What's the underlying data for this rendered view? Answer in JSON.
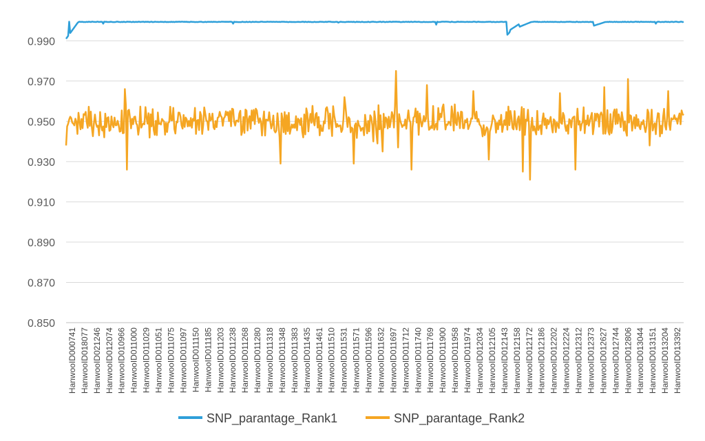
{
  "chart_data": {
    "type": "line",
    "title": "",
    "xlabel": "",
    "ylabel": "",
    "ylim": [
      0.85,
      1.0
    ],
    "yticks": [
      "0.850",
      "0.870",
      "0.890",
      "0.910",
      "0.930",
      "0.950",
      "0.970",
      "0.990"
    ],
    "grid": true,
    "legend_position": "bottom",
    "point_count": 600,
    "tick_labels": [
      "HanwooID000741",
      "HanwooID018077",
      "HanwooID021246",
      "HanwooID012074",
      "HanwooID010966",
      "HanwooID011000",
      "HanwooID011029",
      "HanwooID011051",
      "HanwooID011075",
      "HanwooID011097",
      "HanwooID011150",
      "HanwooID011185",
      "HanwooID011203",
      "HanwooID011238",
      "HanwooID011268",
      "HanwooID011280",
      "HanwooID011318",
      "HanwooID011348",
      "HanwooID011383",
      "HanwooID011435",
      "HanwooID011461",
      "HanwooID011510",
      "HanwooID011531",
      "HanwooID011571",
      "HanwooID011596",
      "HanwooID011632",
      "HanwooID011697",
      "HanwooID011712",
      "HanwooID011740",
      "HanwooID011769",
      "HanwooID011900",
      "HanwooID011958",
      "HanwooID011974",
      "HanwooID012034",
      "HanwooID012105",
      "HanwooID012143",
      "HanwooID012158",
      "HanwooID012172",
      "HanwooID012186",
      "HanwooID012202",
      "HanwooID012224",
      "HanwooID012312",
      "HanwooID012373",
      "HanwooID012627",
      "HanwooID012744",
      "HanwooID012806",
      "HanwooID013044",
      "HanwooID013151",
      "HanwooID013204",
      "HanwooID013392"
    ],
    "series": [
      {
        "name": "SNP_parantage_Rank1",
        "color": "#2E9FD9",
        "base": 0.9995,
        "noise": 0.0004,
        "features": [
          {
            "at": 0.0,
            "value": 0.991
          },
          {
            "at": 0.005,
            "value": 0.9995
          },
          {
            "at": 0.06,
            "value": 0.9985
          },
          {
            "at": 0.27,
            "value": 0.9985
          },
          {
            "at": 0.44,
            "value": 0.999
          },
          {
            "at": 0.6,
            "value": 0.998
          },
          {
            "at": 0.715,
            "value": 0.993
          },
          {
            "at": 0.72,
            "value": 0.9955
          },
          {
            "at": 0.735,
            "value": 0.997
          },
          {
            "at": 0.855,
            "value": 0.9975
          },
          {
            "at": 0.955,
            "value": 0.9985
          }
        ]
      },
      {
        "name": "SNP_parantage_Rank2",
        "color": "#F5A623",
        "base": 0.95,
        "noise": 0.0075,
        "features": [
          {
            "at": 0.0,
            "value": 0.938
          },
          {
            "at": 0.095,
            "value": 0.966
          },
          {
            "at": 0.098,
            "value": 0.926
          },
          {
            "at": 0.348,
            "value": 0.929
          },
          {
            "at": 0.45,
            "value": 0.962
          },
          {
            "at": 0.465,
            "value": 0.929
          },
          {
            "at": 0.49,
            "value": 0.929
          },
          {
            "at": 0.497,
            "value": 0.931
          },
          {
            "at": 0.492,
            "value": 0.962
          },
          {
            "at": 0.51,
            "value": 0.96
          },
          {
            "at": 0.49,
            "value": 0.956
          },
          {
            "at": 0.498,
            "value": 0.958
          },
          {
            "at": 0.5,
            "value": 0.962
          },
          {
            "at": 0.495,
            "value": 0.951
          },
          {
            "at": 0.508,
            "value": 0.93
          },
          {
            "at": 0.512,
            "value": 0.935
          },
          {
            "at": 0.496,
            "value": 0.928
          },
          {
            "at": 0.499,
            "value": 0.946
          },
          {
            "at": 0.502,
            "value": 0.941
          },
          {
            "at": 0.505,
            "value": 0.944
          },
          {
            "at": 0.494,
            "value": 0.952
          },
          {
            "at": 0.488,
            "value": 0.947
          },
          {
            "at": 0.493,
            "value": 0.955
          },
          {
            "at": 0.497,
            "value": 0.94
          },
          {
            "at": 0.5,
            "value": 0.944
          },
          {
            "at": 0.503,
            "value": 0.951
          },
          {
            "at": 0.506,
            "value": 0.958
          },
          {
            "at": 0.509,
            "value": 0.949
          },
          {
            "at": 0.5,
            "value": 0.952
          },
          {
            "at": 0.51,
            "value": 0.953
          },
          {
            "at": 0.49,
            "value": 0.957
          },
          {
            "at": 0.501,
            "value": 0.948
          },
          {
            "at": 0.499,
            "value": 0.955
          },
          {
            "at": 0.504,
            "value": 0.939
          },
          {
            "at": 0.507,
            "value": 0.946
          },
          {
            "at": 0.495,
            "value": 0.948
          },
          {
            "at": 0.492,
            "value": 0.953
          },
          {
            "at": 0.487,
            "value": 0.944
          },
          {
            "at": 0.5,
            "value": 0.951
          },
          {
            "at": 0.503,
            "value": 0.944
          },
          {
            "at": 0.49,
            "value": 0.945
          },
          {
            "at": 0.535,
            "value": 0.975
          },
          {
            "at": 0.537,
            "value": 0.937
          },
          {
            "at": 0.56,
            "value": 0.926
          },
          {
            "at": 0.585,
            "value": 0.968
          },
          {
            "at": 0.66,
            "value": 0.965
          },
          {
            "at": 0.685,
            "value": 0.931
          },
          {
            "at": 0.74,
            "value": 0.925
          },
          {
            "at": 0.752,
            "value": 0.921
          },
          {
            "at": 0.8,
            "value": 0.964
          },
          {
            "at": 0.825,
            "value": 0.926
          },
          {
            "at": 0.872,
            "value": 0.967
          },
          {
            "at": 0.91,
            "value": 0.971
          },
          {
            "at": 0.945,
            "value": 0.938
          },
          {
            "at": 0.975,
            "value": 0.965
          },
          {
            "at": 1.0,
            "value": 0.953
          }
        ]
      }
    ]
  }
}
